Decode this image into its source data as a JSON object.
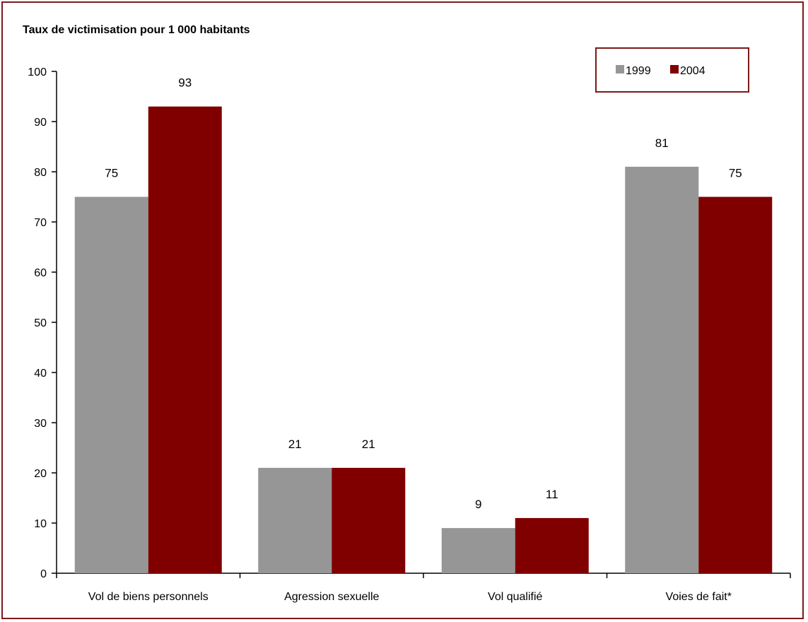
{
  "chart_data": {
    "type": "bar",
    "title": "Taux de victimisation pour 1 000 habitants",
    "categories": [
      "Vol de biens personnels",
      "Agression sexuelle",
      "Vol qualifié",
      "Voies de fait*"
    ],
    "series": [
      {
        "name": "1999",
        "color": "#969696",
        "values": [
          75,
          21,
          9,
          81
        ]
      },
      {
        "name": "2004",
        "color": "#800000",
        "values": [
          93,
          21,
          11,
          75
        ]
      }
    ],
    "ylim": [
      0,
      100
    ],
    "yticks": [
      0,
      10,
      20,
      30,
      40,
      50,
      60,
      70,
      80,
      90,
      100
    ],
    "grid": false,
    "legend_position": "top-right",
    "frame_color": "#7a1a1a"
  }
}
